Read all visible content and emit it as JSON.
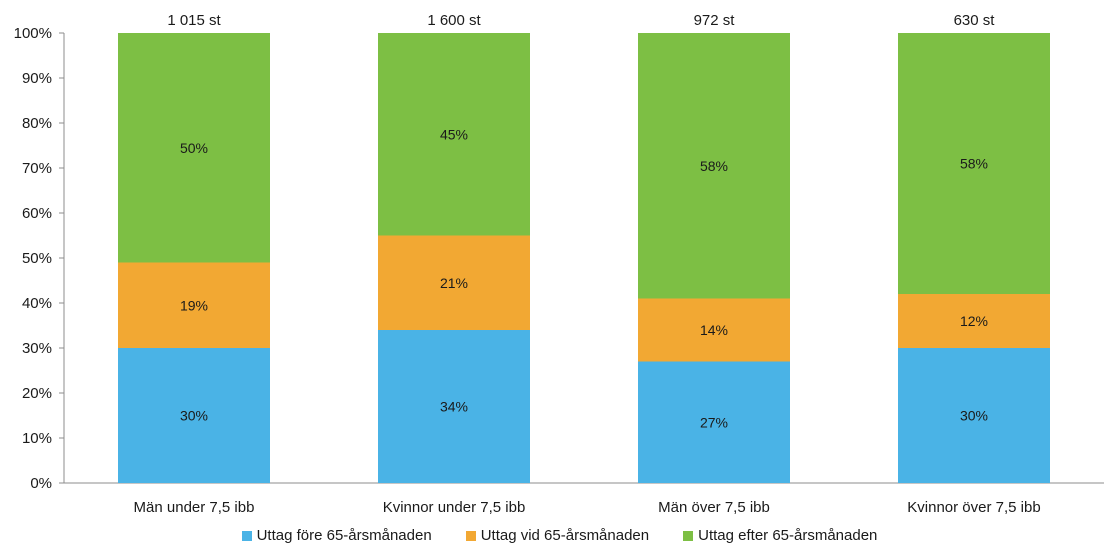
{
  "chart_data": {
    "type": "bar",
    "stacked": true,
    "categories": [
      "Män under 7,5 ibb",
      "Kvinnor under 7,5 ibb",
      "Män över 7,5 ibb",
      "Kvinnor över 7,5 ibb"
    ],
    "totals": [
      "1 015 st",
      "1 600 st",
      "972 st",
      "630 st"
    ],
    "series": [
      {
        "name": "Uttag före 65-årsmånaden",
        "values": [
          30,
          34,
          27,
          30
        ],
        "labels": [
          "30%",
          "34%",
          "27%",
          "30%"
        ],
        "color": "#4ab3e6"
      },
      {
        "name": "Uttag vid 65-årsmånaden",
        "values": [
          19,
          21,
          14,
          12
        ],
        "labels": [
          "19%",
          "21%",
          "14%",
          "12%"
        ],
        "color": "#f2a833"
      },
      {
        "name": "Uttag efter 65-årsmånaden",
        "values": [
          50,
          45,
          58,
          58
        ],
        "labels": [
          "50%",
          "45%",
          "58%",
          "58%"
        ],
        "color": "#7dbf44"
      }
    ],
    "ylim": [
      0,
      100
    ],
    "yticks": [
      "0%",
      "10%",
      "20%",
      "30%",
      "40%",
      "50%",
      "60%",
      "70%",
      "80%",
      "90%",
      "100%"
    ],
    "legend_position": "bottom",
    "grid": false
  }
}
